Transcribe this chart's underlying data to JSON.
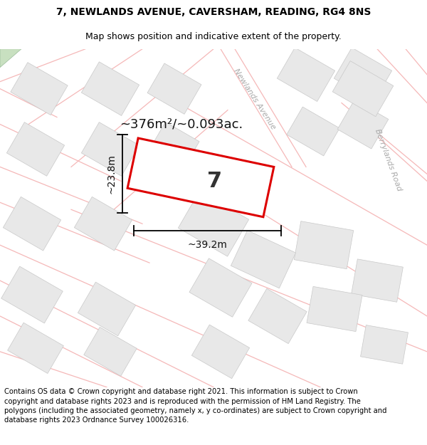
{
  "title_line1": "7, NEWLANDS AVENUE, CAVERSHAM, READING, RG4 8NS",
  "title_line2": "Map shows position and indicative extent of the property.",
  "footer_text": "Contains OS data © Crown copyright and database right 2021. This information is subject to Crown copyright and database rights 2023 and is reproduced with the permission of HM Land Registry. The polygons (including the associated geometry, namely x, y co-ordinates) are subject to Crown copyright and database rights 2023 Ordnance Survey 100026316.",
  "area_label": "~376m²/~0.093ac.",
  "plot_number": "7",
  "width_label": "~39.2m",
  "height_label": "~23.8m",
  "map_bg": "#ffffff",
  "road_line_color": "#f5b8b8",
  "building_face": "#e8e8e8",
  "building_edge": "#c8c8c8",
  "plot_border_color": "#dd0000",
  "plot_fill_color": "#ffffff",
  "street_label_color": "#aaaaaa",
  "street_label": "Newlands Avenue",
  "street_label2": "Berrylands Road",
  "title_fontsize": 10,
  "subtitle_fontsize": 9,
  "footer_fontsize": 7.2,
  "green_patch": "#c8e0c0"
}
